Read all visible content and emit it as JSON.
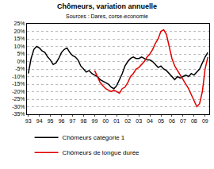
{
  "chart_data": {
    "type": "line",
    "title": "Chômeurs, variation annuelle",
    "subtitle": "Sources : Dares, corse-economie",
    "categories": [
      "93",
      null,
      null,
      null,
      "94",
      null,
      null,
      null,
      "95",
      null,
      null,
      null,
      "96",
      null,
      null,
      null,
      "97",
      null,
      null,
      null,
      "98",
      null,
      null,
      null,
      "99",
      null,
      null,
      null,
      "00",
      null,
      null,
      null,
      "01",
      null,
      null,
      null,
      "02",
      null,
      null,
      null,
      "03",
      null,
      null,
      null,
      "04",
      null,
      null,
      null,
      "05",
      null,
      null,
      null,
      "06",
      null,
      null,
      null,
      "07",
      null,
      null,
      null,
      "08",
      null,
      null,
      null,
      "09",
      null
    ],
    "series": [
      {
        "name": "Chômeurs catégorie 1",
        "color": "#000000",
        "values": [
          -8,
          2,
          8,
          10,
          9,
          7,
          6,
          3,
          1,
          -2,
          -1,
          2,
          6,
          8,
          9,
          6,
          4,
          3,
          1,
          -3,
          -5,
          -7,
          -6,
          -8,
          -9,
          -10,
          -12,
          -13,
          -14,
          -15,
          -17,
          -18,
          -16,
          -12,
          -8,
          -3,
          0,
          2,
          3,
          2,
          2,
          3,
          2,
          1,
          1,
          0,
          -2,
          -4,
          -3,
          -5,
          -6,
          -8,
          -10,
          -12,
          -10,
          -11,
          -10,
          -9,
          -10,
          -8,
          -9,
          -7,
          -5,
          -1,
          3,
          6
        ]
      },
      {
        "name": "Chômeurs de longue durée",
        "color": "#e00000",
        "values": [
          null,
          null,
          null,
          null,
          null,
          null,
          null,
          null,
          null,
          null,
          null,
          null,
          null,
          null,
          null,
          null,
          null,
          null,
          null,
          null,
          null,
          null,
          null,
          null,
          -6,
          -10,
          -14,
          -16,
          -18,
          -19,
          -20,
          -19,
          -20,
          -21,
          -18,
          -17,
          -14,
          -10,
          -8,
          -5,
          -4,
          -2,
          0,
          3,
          5,
          8,
          12,
          15,
          20,
          21,
          18,
          10,
          2,
          -3,
          -6,
          -9,
          -12,
          -15,
          -18,
          -22,
          -26,
          -30,
          -28,
          -20,
          -5,
          3
        ]
      }
    ],
    "ylim": [
      -35,
      25
    ],
    "yticks": [
      {
        "value": -35,
        "label": "-35%"
      },
      {
        "value": -30,
        "label": "-30%"
      },
      {
        "value": -25,
        "label": "-25%"
      },
      {
        "value": -20,
        "label": "-20%"
      },
      {
        "value": -15,
        "label": "-15%"
      },
      {
        "value": -10,
        "label": "-10%"
      },
      {
        "value": -5,
        "label": "-5%"
      },
      {
        "value": 0,
        "label": "0%"
      },
      {
        "value": 5,
        "label": "5%"
      },
      {
        "value": 10,
        "label": "10%"
      },
      {
        "value": 15,
        "label": "15%"
      },
      {
        "value": 20,
        "label": "20%"
      },
      {
        "value": 25,
        "label": "25%"
      }
    ],
    "grid": true,
    "legend": "bottom"
  }
}
